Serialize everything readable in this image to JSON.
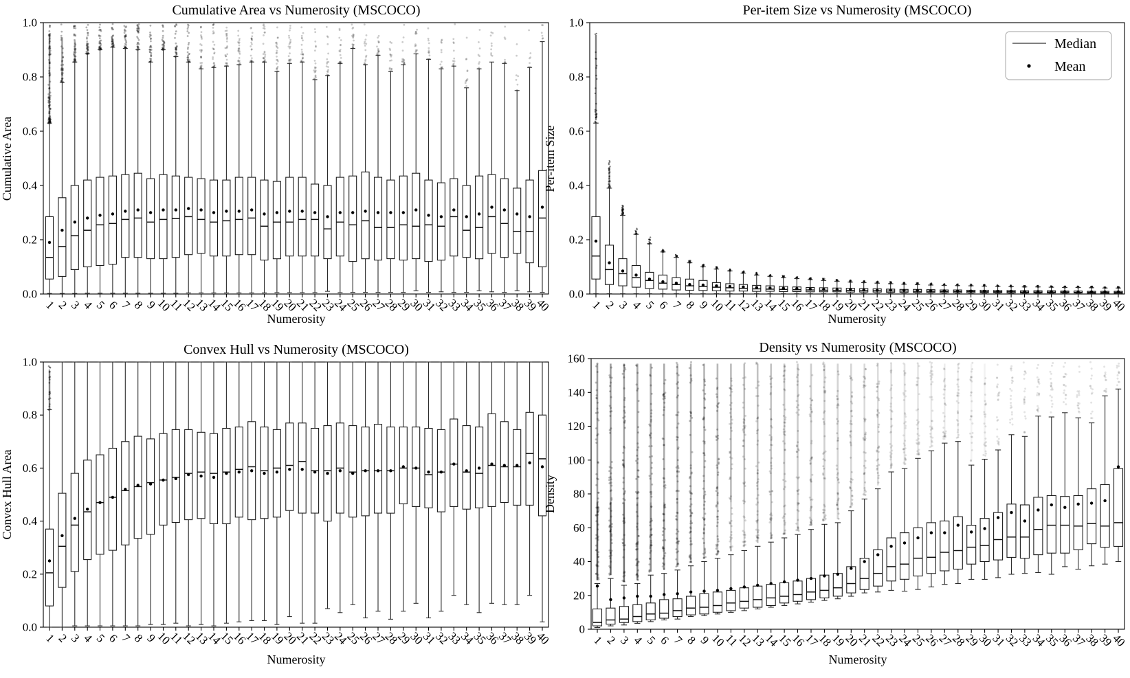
{
  "figure": {
    "background": "#ffffff",
    "ink": "#000000",
    "box_fill": "#ffffff",
    "box_edge": "#1a1a1a",
    "whisker_color": "#2b2b2b",
    "legend_border": "#b3b3b3"
  },
  "numerosity_labels": [
    "1",
    "2",
    "3",
    "4",
    "5",
    "6",
    "7",
    "8",
    "9",
    "10",
    "11",
    "12",
    "13",
    "14",
    "15",
    "16",
    "17",
    "18",
    "19",
    "20",
    "21",
    "22",
    "23",
    "24",
    "25",
    "26",
    "27",
    "28",
    "29",
    "30",
    "31",
    "32",
    "33",
    "34",
    "35",
    "36",
    "37",
    "38",
    "39",
    "40"
  ],
  "chart_data": [
    {
      "id": "cumulative-area",
      "type": "box",
      "title": "Cumulative Area vs Numerosity (MSCOCO)",
      "xlabel": "Numerosity",
      "ylabel": "Cumulative Area",
      "ylim": [
        0.0,
        1.0
      ],
      "yticks": [
        0.0,
        0.2,
        0.4,
        0.6,
        0.8,
        1.0
      ],
      "yticklabels": [
        "0.0",
        "0.2",
        "0.4",
        "0.6",
        "0.8",
        "1.0"
      ],
      "grid": false,
      "outlier_ceiling": 0.995,
      "stats": {
        "whislo": [
          0.002,
          0.002,
          0.002,
          0.003,
          0.003,
          0.003,
          0.003,
          0.003,
          0.003,
          0.003,
          0.003,
          0.004,
          0.004,
          0.004,
          0.004,
          0.004,
          0.004,
          0.004,
          0.005,
          0.005,
          0.005,
          0.005,
          0.01,
          0.005,
          0.006,
          0.006,
          0.006,
          0.006,
          0.006,
          0.012,
          0.006,
          0.008,
          0.006,
          0.006,
          0.012,
          0.008,
          0.006,
          0.012,
          0.008,
          0.006
        ],
        "q1": [
          0.055,
          0.065,
          0.09,
          0.1,
          0.105,
          0.11,
          0.135,
          0.135,
          0.13,
          0.13,
          0.135,
          0.145,
          0.15,
          0.14,
          0.14,
          0.145,
          0.145,
          0.125,
          0.13,
          0.14,
          0.14,
          0.14,
          0.13,
          0.14,
          0.12,
          0.13,
          0.125,
          0.13,
          0.125,
          0.13,
          0.12,
          0.125,
          0.14,
          0.135,
          0.13,
          0.15,
          0.135,
          0.15,
          0.115,
          0.1
        ],
        "med": [
          0.135,
          0.175,
          0.215,
          0.235,
          0.255,
          0.26,
          0.275,
          0.28,
          0.265,
          0.275,
          0.278,
          0.285,
          0.275,
          0.265,
          0.27,
          0.275,
          0.28,
          0.25,
          0.265,
          0.265,
          0.275,
          0.275,
          0.24,
          0.265,
          0.255,
          0.27,
          0.245,
          0.245,
          0.255,
          0.25,
          0.255,
          0.25,
          0.285,
          0.235,
          0.245,
          0.285,
          0.26,
          0.23,
          0.23,
          0.28
        ],
        "q3": [
          0.285,
          0.355,
          0.4,
          0.42,
          0.43,
          0.435,
          0.44,
          0.445,
          0.425,
          0.44,
          0.435,
          0.43,
          0.425,
          0.42,
          0.42,
          0.43,
          0.43,
          0.42,
          0.415,
          0.43,
          0.43,
          0.405,
          0.4,
          0.43,
          0.435,
          0.45,
          0.43,
          0.42,
          0.435,
          0.445,
          0.42,
          0.41,
          0.425,
          0.4,
          0.435,
          0.44,
          0.425,
          0.39,
          0.42,
          0.455
        ],
        "whishi": [
          0.63,
          0.78,
          0.855,
          0.885,
          0.9,
          0.91,
          0.905,
          0.9,
          0.855,
          0.9,
          0.875,
          0.855,
          0.83,
          0.835,
          0.84,
          0.845,
          0.855,
          0.855,
          0.82,
          0.85,
          0.855,
          0.79,
          0.805,
          0.85,
          0.905,
          0.845,
          0.88,
          0.82,
          0.845,
          0.885,
          0.865,
          0.83,
          0.84,
          0.76,
          0.83,
          0.855,
          0.85,
          0.75,
          0.835,
          0.93
        ],
        "mean": [
          0.19,
          0.235,
          0.265,
          0.28,
          0.29,
          0.295,
          0.305,
          0.31,
          0.3,
          0.31,
          0.31,
          0.315,
          0.31,
          0.3,
          0.305,
          0.305,
          0.31,
          0.295,
          0.3,
          0.305,
          0.305,
          0.3,
          0.285,
          0.3,
          0.3,
          0.305,
          0.3,
          0.3,
          0.3,
          0.31,
          0.29,
          0.285,
          0.31,
          0.285,
          0.295,
          0.32,
          0.31,
          0.295,
          0.285,
          0.32
        ]
      }
    },
    {
      "id": "per-item-size",
      "type": "box",
      "title": "Per-item Size vs Numerosity (MSCOCO)",
      "xlabel": "Numerosity",
      "ylabel": "Per-item Size",
      "ylim": [
        0.0,
        1.0
      ],
      "yticks": [
        0.0,
        0.2,
        0.4,
        0.6,
        0.8,
        1.0
      ],
      "yticklabels": [
        "0.0",
        "0.2",
        "0.4",
        "0.6",
        "0.8",
        "1.0"
      ],
      "grid": false,
      "legend": {
        "items": [
          {
            "label": "Median",
            "marker": "line"
          },
          {
            "label": "Mean",
            "marker": "dot"
          }
        ]
      },
      "outlier_max": [
        0.99,
        0.5,
        0.33,
        0.255,
        0.21,
        0.165,
        0.145,
        0.125,
        0.11,
        0.1,
        0.092,
        0.085,
        0.08,
        0.073,
        0.068,
        0.064,
        0.06,
        0.057,
        0.054,
        0.051,
        0.049,
        0.047,
        0.045,
        0.043,
        0.041,
        0.04,
        0.038,
        0.037,
        0.036,
        0.035,
        0.034,
        0.033,
        0.032,
        0.031,
        0.03,
        0.029,
        0.029,
        0.028,
        0.027,
        0.027
      ],
      "stats": {
        "whislo": [
          0.001,
          0.001,
          0.001,
          0.001,
          0.001,
          0.001,
          0.001,
          0.001,
          0.001,
          0.001,
          0.001,
          0.001,
          0.001,
          0.001,
          0.001,
          0.001,
          0.001,
          0.001,
          0.001,
          0.001,
          0.001,
          0.001,
          0.001,
          0.001,
          0.001,
          0.001,
          0.001,
          0.001,
          0.001,
          0.001,
          0.001,
          0.001,
          0.001,
          0.001,
          0.001,
          0.001,
          0.001,
          0.001,
          0.001,
          0.001
        ],
        "q1": [
          0.055,
          0.035,
          0.03,
          0.025,
          0.02,
          0.018,
          0.015,
          0.014,
          0.013,
          0.012,
          0.011,
          0.011,
          0.01,
          0.01,
          0.009,
          0.009,
          0.008,
          0.008,
          0.008,
          0.007,
          0.007,
          0.007,
          0.006,
          0.006,
          0.006,
          0.006,
          0.005,
          0.005,
          0.005,
          0.005,
          0.005,
          0.004,
          0.004,
          0.004,
          0.004,
          0.004,
          0.004,
          0.003,
          0.003,
          0.003
        ],
        "med": [
          0.14,
          0.09,
          0.075,
          0.06,
          0.05,
          0.04,
          0.035,
          0.03,
          0.028,
          0.025,
          0.023,
          0.021,
          0.019,
          0.018,
          0.017,
          0.016,
          0.015,
          0.014,
          0.013,
          0.013,
          0.012,
          0.012,
          0.011,
          0.011,
          0.01,
          0.01,
          0.009,
          0.009,
          0.009,
          0.008,
          0.008,
          0.008,
          0.007,
          0.007,
          0.007,
          0.007,
          0.006,
          0.006,
          0.006,
          0.006
        ],
        "q3": [
          0.285,
          0.18,
          0.13,
          0.105,
          0.08,
          0.07,
          0.06,
          0.055,
          0.05,
          0.042,
          0.038,
          0.035,
          0.032,
          0.03,
          0.028,
          0.026,
          0.024,
          0.023,
          0.022,
          0.021,
          0.02,
          0.019,
          0.018,
          0.017,
          0.017,
          0.016,
          0.015,
          0.015,
          0.014,
          0.014,
          0.013,
          0.013,
          0.012,
          0.012,
          0.012,
          0.011,
          0.011,
          0.01,
          0.01,
          0.01
        ],
        "whishi": [
          0.63,
          0.39,
          0.29,
          0.22,
          0.185,
          0.155,
          0.135,
          0.115,
          0.1,
          0.092,
          0.085,
          0.077,
          0.07,
          0.065,
          0.06,
          0.057,
          0.053,
          0.05,
          0.047,
          0.044,
          0.042,
          0.04,
          0.038,
          0.036,
          0.035,
          0.033,
          0.032,
          0.031,
          0.03,
          0.029,
          0.028,
          0.027,
          0.026,
          0.026,
          0.025,
          0.024,
          0.024,
          0.023,
          0.022,
          0.022
        ],
        "mean": [
          0.195,
          0.115,
          0.085,
          0.07,
          0.055,
          0.045,
          0.04,
          0.035,
          0.033,
          0.03,
          0.028,
          0.026,
          0.024,
          0.022,
          0.021,
          0.02,
          0.018,
          0.017,
          0.016,
          0.016,
          0.015,
          0.014,
          0.014,
          0.013,
          0.013,
          0.012,
          0.012,
          0.011,
          0.011,
          0.01,
          0.01,
          0.01,
          0.009,
          0.009,
          0.009,
          0.009,
          0.008,
          0.008,
          0.008,
          0.008
        ]
      }
    },
    {
      "id": "convex-hull",
      "type": "box",
      "title": "Convex Hull vs Numerosity (MSCOCO)",
      "xlabel": "Numerosity",
      "ylabel": "Convex Hull Area",
      "ylim": [
        0.0,
        1.0
      ],
      "yticks": [
        0.0,
        0.2,
        0.4,
        0.6,
        0.8,
        1.0
      ],
      "yticklabels": [
        "0.0",
        "0.2",
        "0.4",
        "0.6",
        "0.8",
        "1.0"
      ],
      "grid": false,
      "outlier_n1_range": [
        0.82,
        1.0
      ],
      "stats": {
        "whislo": [
          0.0,
          0.0,
          0.005,
          0.005,
          0.005,
          0.005,
          0.005,
          0.005,
          0.01,
          0.01,
          0.015,
          0.005,
          0.01,
          0.005,
          0.015,
          0.02,
          0.025,
          0.025,
          0.01,
          0.04,
          0.015,
          0.015,
          0.07,
          0.055,
          0.085,
          0.035,
          0.06,
          0.03,
          0.06,
          0.09,
          0.035,
          0.06,
          0.12,
          0.085,
          0.055,
          0.09,
          0.085,
          0.085,
          0.12,
          0.02
        ],
        "q1": [
          0.08,
          0.15,
          0.21,
          0.255,
          0.275,
          0.29,
          0.31,
          0.335,
          0.35,
          0.385,
          0.395,
          0.405,
          0.41,
          0.39,
          0.39,
          0.415,
          0.405,
          0.41,
          0.415,
          0.44,
          0.43,
          0.43,
          0.4,
          0.43,
          0.415,
          0.42,
          0.43,
          0.43,
          0.465,
          0.455,
          0.45,
          0.435,
          0.455,
          0.445,
          0.45,
          0.455,
          0.47,
          0.46,
          0.46,
          0.42
        ],
        "med": [
          0.205,
          0.305,
          0.385,
          0.435,
          0.47,
          0.49,
          0.515,
          0.53,
          0.545,
          0.555,
          0.565,
          0.58,
          0.585,
          0.58,
          0.585,
          0.595,
          0.605,
          0.59,
          0.6,
          0.61,
          0.625,
          0.59,
          0.59,
          0.6,
          0.585,
          0.59,
          0.59,
          0.59,
          0.6,
          0.6,
          0.575,
          0.585,
          0.615,
          0.585,
          0.58,
          0.61,
          0.605,
          0.605,
          0.655,
          0.635
        ],
        "q3": [
          0.37,
          0.505,
          0.58,
          0.63,
          0.65,
          0.675,
          0.7,
          0.72,
          0.71,
          0.73,
          0.745,
          0.745,
          0.735,
          0.73,
          0.75,
          0.755,
          0.775,
          0.755,
          0.745,
          0.77,
          0.77,
          0.75,
          0.76,
          0.77,
          0.76,
          0.755,
          0.765,
          0.755,
          0.755,
          0.755,
          0.75,
          0.745,
          0.785,
          0.76,
          0.755,
          0.805,
          0.775,
          0.745,
          0.81,
          0.8
        ],
        "whishi": [
          0.82,
          1.0,
          1.0,
          1.0,
          1.0,
          1.0,
          1.0,
          1.0,
          1.0,
          1.0,
          1.0,
          1.0,
          1.0,
          1.0,
          1.0,
          1.0,
          1.0,
          1.0,
          1.0,
          1.0,
          1.0,
          1.0,
          1.0,
          1.0,
          1.0,
          1.0,
          1.0,
          1.0,
          1.0,
          1.0,
          1.0,
          1.0,
          1.0,
          1.0,
          1.0,
          1.0,
          1.0,
          1.0,
          1.0,
          1.0
        ],
        "mean": [
          0.25,
          0.345,
          0.41,
          0.445,
          0.47,
          0.49,
          0.52,
          0.535,
          0.54,
          0.555,
          0.56,
          0.575,
          0.57,
          0.565,
          0.58,
          0.585,
          0.59,
          0.58,
          0.585,
          0.595,
          0.595,
          0.585,
          0.58,
          0.59,
          0.58,
          0.59,
          0.59,
          0.59,
          0.605,
          0.6,
          0.585,
          0.585,
          0.615,
          0.59,
          0.6,
          0.615,
          0.61,
          0.61,
          0.62,
          0.605
        ]
      }
    },
    {
      "id": "density",
      "type": "box",
      "title": "Density vs Numerosity (MSCOCO)",
      "xlabel": "Numerosity",
      "ylabel": "Density",
      "ylim": [
        0,
        160
      ],
      "yticks": [
        0,
        20,
        40,
        60,
        80,
        100,
        120,
        140,
        160
      ],
      "yticklabels": [
        "0",
        "20",
        "40",
        "60",
        "80",
        "100",
        "120",
        "140",
        "160"
      ],
      "grid": false,
      "outlier_ceiling": 158,
      "stats": {
        "whislo": [
          1,
          2,
          2.5,
          3.5,
          4.5,
          5.5,
          6,
          7.5,
          8,
          9,
          10,
          11,
          12,
          13,
          14,
          15,
          16,
          17,
          18,
          19.5,
          21.5,
          22,
          23,
          22.5,
          23.5,
          25,
          26.5,
          27,
          29.5,
          29.5,
          30.5,
          32.5,
          33,
          33.5,
          32.5,
          37,
          35.5,
          37.5,
          38.5,
          40
        ],
        "q1": [
          2,
          3,
          4,
          4.5,
          5.5,
          6.5,
          7.5,
          8.5,
          9,
          10,
          11,
          12.5,
          13,
          14,
          15.5,
          16.5,
          17.5,
          18.5,
          19.5,
          21.5,
          23.5,
          25.5,
          28.5,
          29.5,
          31.5,
          33,
          34.5,
          35.5,
          38.5,
          40,
          41,
          42.5,
          42,
          44,
          45,
          45,
          47,
          50.5,
          48.5,
          49
        ],
        "med": [
          4,
          5.5,
          6,
          7.5,
          9,
          9.5,
          11,
          12.5,
          13,
          14,
          15.5,
          16.5,
          17.5,
          18.5,
          19.5,
          20.5,
          22,
          23,
          24.5,
          27,
          30,
          33,
          37,
          38.5,
          42,
          42.5,
          45.5,
          46.5,
          48.5,
          49.5,
          53,
          54.5,
          54.5,
          59,
          61.5,
          61.5,
          61,
          62.5,
          61,
          63
        ],
        "q3": [
          12,
          12.5,
          13.5,
          14.5,
          15.5,
          17.5,
          18,
          19.5,
          21,
          22,
          23,
          24.5,
          25.5,
          26.5,
          27.5,
          28.5,
          30,
          32,
          33,
          37,
          42,
          47,
          54,
          57,
          60,
          63,
          64,
          66.5,
          61.5,
          65.5,
          69,
          74,
          73.5,
          78,
          79,
          78.5,
          79,
          83,
          85.5,
          95
        ],
        "whishi": [
          27,
          30,
          26,
          27,
          32,
          33,
          35,
          37.5,
          40,
          42,
          44,
          46.5,
          49,
          51.5,
          54,
          56,
          59,
          62,
          63,
          70,
          77,
          83,
          93,
          95,
          101,
          105.5,
          110,
          111,
          97,
          100.5,
          106,
          115,
          114,
          126,
          125.5,
          128,
          125,
          122,
          138,
          142
        ],
        "mean": [
          25.5,
          17.5,
          18.5,
          19.5,
          19.5,
          20.5,
          21,
          22,
          22.5,
          23,
          24,
          25,
          26,
          27,
          28,
          29,
          30,
          31.5,
          32.5,
          36,
          40,
          44,
          49,
          51,
          54,
          57,
          57,
          61.5,
          57.5,
          59.5,
          66,
          69,
          64,
          70.5,
          73.5,
          72,
          74,
          74.5,
          76,
          96
        ]
      }
    }
  ]
}
